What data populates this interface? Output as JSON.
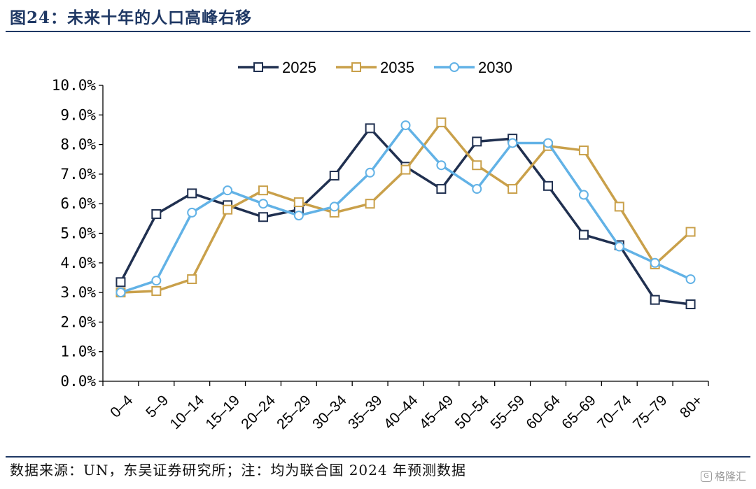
{
  "header": {
    "title": "图24：未来十年的人口高峰右移"
  },
  "footer": {
    "source": "数据来源：UN，东吴证券研究所；注：均为联合国 2024 年预测数据",
    "watermark": "格隆汇"
  },
  "chart_data": {
    "type": "line",
    "title": "图24：未来十年的人口高峰右移",
    "xlabel": "",
    "ylabel": "",
    "ylim": [
      0,
      10
    ],
    "y_ticks": [
      "0.0%",
      "1.0%",
      "2.0%",
      "3.0%",
      "4.0%",
      "5.0%",
      "6.0%",
      "7.0%",
      "8.0%",
      "9.0%",
      "10.0%"
    ],
    "grid": false,
    "legend_position": "top",
    "categories": [
      "0-4",
      "5-9",
      "10-14",
      "15-19",
      "20-24",
      "25-29",
      "30-34",
      "35-39",
      "40-44",
      "45-49",
      "50-54",
      "55-59",
      "60-64",
      "65-69",
      "70-74",
      "75-79",
      "80+"
    ],
    "series": [
      {
        "name": "2025",
        "color": "#203050",
        "marker": "square",
        "values": [
          3.35,
          5.65,
          6.35,
          5.95,
          5.55,
          5.8,
          6.95,
          8.55,
          7.25,
          6.5,
          8.1,
          8.2,
          6.6,
          4.95,
          4.6,
          2.75,
          2.6
        ]
      },
      {
        "name": "2035",
        "color": "#c9a04a",
        "marker": "square",
        "values": [
          3.0,
          3.05,
          3.45,
          5.8,
          6.45,
          6.05,
          5.7,
          6.0,
          7.15,
          8.75,
          7.3,
          6.5,
          7.95,
          7.8,
          5.9,
          3.95,
          5.05
        ]
      },
      {
        "name": "2030",
        "color": "#62b2e6",
        "marker": "circle",
        "values": [
          3.0,
          3.4,
          5.7,
          6.45,
          6.0,
          5.6,
          5.9,
          7.05,
          8.65,
          7.3,
          6.5,
          8.05,
          8.05,
          6.3,
          4.55,
          4.0,
          3.45
        ]
      }
    ]
  }
}
